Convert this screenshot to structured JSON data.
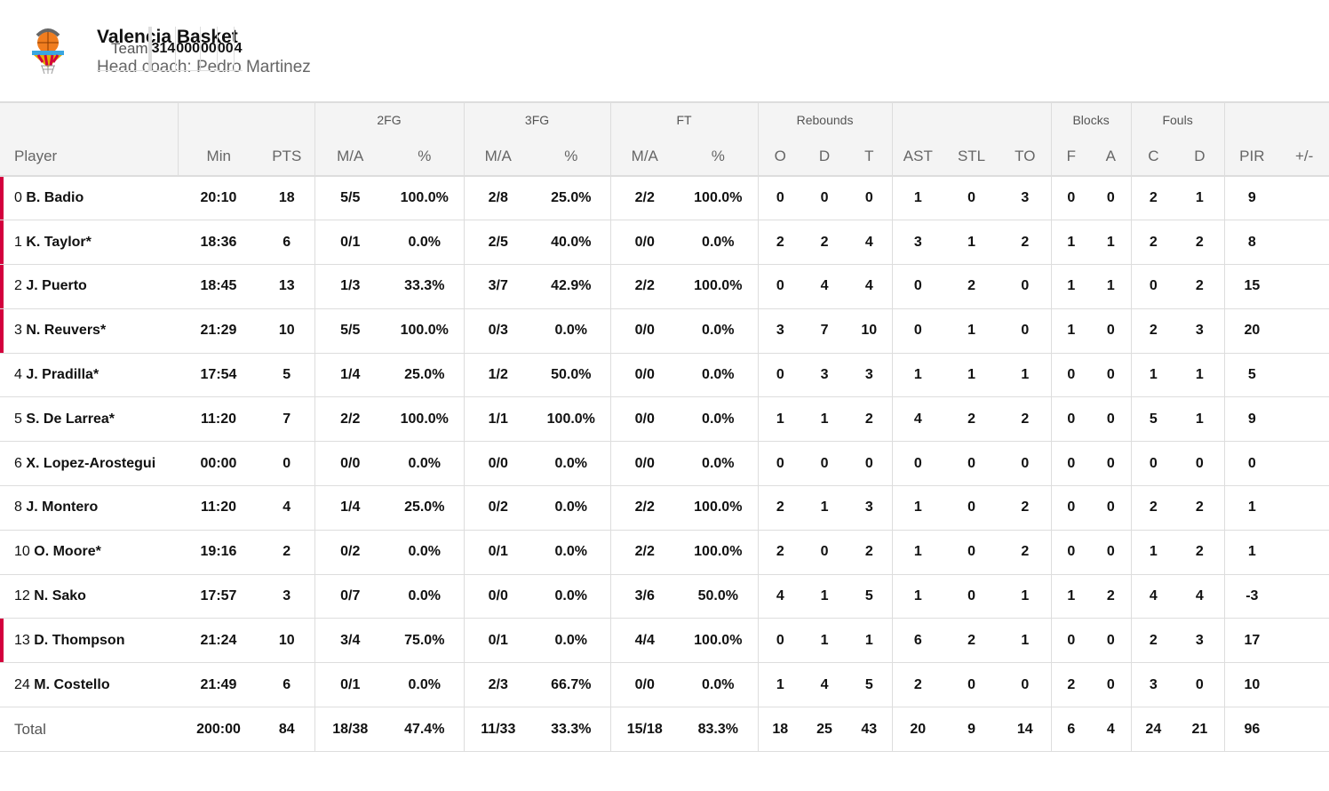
{
  "team": {
    "name": "Valencia Basket",
    "coach": "Head coach: Pedro Martinez",
    "logo_text": "VALENCIA BASKET"
  },
  "groups": {
    "fg2": "2FG",
    "fg3": "3FG",
    "ft": "FT",
    "reb": "Rebounds",
    "blk": "Blocks",
    "fouls": "Fouls"
  },
  "columns": [
    "Player",
    "Min",
    "PTS",
    "M/A",
    "%",
    "M/A",
    "%",
    "M/A",
    "%",
    "O",
    "D",
    "T",
    "AST",
    "STL",
    "TO",
    "F",
    "A",
    "C",
    "D",
    "PIR",
    "+/-"
  ],
  "players": [
    {
      "num": "0",
      "name": "B. Badio",
      "starter": true,
      "stats": [
        "20:10",
        "18",
        "5/5",
        "100.0%",
        "2/8",
        "25.0%",
        "2/2",
        "100.0%",
        "0",
        "0",
        "0",
        "1",
        "0",
        "3",
        "0",
        "0",
        "2",
        "1",
        "9",
        ""
      ]
    },
    {
      "num": "1",
      "name": "K. Taylor*",
      "starter": true,
      "stats": [
        "18:36",
        "6",
        "0/1",
        "0.0%",
        "2/5",
        "40.0%",
        "0/0",
        "0.0%",
        "2",
        "2",
        "4",
        "3",
        "1",
        "2",
        "1",
        "1",
        "2",
        "2",
        "8",
        ""
      ]
    },
    {
      "num": "2",
      "name": "J. Puerto",
      "starter": true,
      "stats": [
        "18:45",
        "13",
        "1/3",
        "33.3%",
        "3/7",
        "42.9%",
        "2/2",
        "100.0%",
        "0",
        "4",
        "4",
        "0",
        "2",
        "0",
        "1",
        "1",
        "0",
        "2",
        "15",
        ""
      ]
    },
    {
      "num": "3",
      "name": "N. Reuvers*",
      "starter": true,
      "stats": [
        "21:29",
        "10",
        "5/5",
        "100.0%",
        "0/3",
        "0.0%",
        "0/0",
        "0.0%",
        "3",
        "7",
        "10",
        "0",
        "1",
        "0",
        "1",
        "0",
        "2",
        "3",
        "20",
        ""
      ]
    },
    {
      "num": "4",
      "name": "J. Pradilla*",
      "starter": false,
      "stats": [
        "17:54",
        "5",
        "1/4",
        "25.0%",
        "1/2",
        "50.0%",
        "0/0",
        "0.0%",
        "0",
        "3",
        "3",
        "1",
        "1",
        "1",
        "0",
        "0",
        "1",
        "1",
        "5",
        ""
      ]
    },
    {
      "num": "5",
      "name": "S. De Larrea*",
      "starter": false,
      "stats": [
        "11:20",
        "7",
        "2/2",
        "100.0%",
        "1/1",
        "100.0%",
        "0/0",
        "0.0%",
        "1",
        "1",
        "2",
        "4",
        "2",
        "2",
        "0",
        "0",
        "5",
        "1",
        "9",
        ""
      ]
    },
    {
      "num": "6",
      "name": "X. Lopez-Arostegui",
      "starter": false,
      "stats": [
        "00:00",
        "0",
        "0/0",
        "0.0%",
        "0/0",
        "0.0%",
        "0/0",
        "0.0%",
        "0",
        "0",
        "0",
        "0",
        "0",
        "0",
        "0",
        "0",
        "0",
        "0",
        "0",
        ""
      ]
    },
    {
      "num": "8",
      "name": "J. Montero",
      "starter": false,
      "stats": [
        "11:20",
        "4",
        "1/4",
        "25.0%",
        "0/2",
        "0.0%",
        "2/2",
        "100.0%",
        "2",
        "1",
        "3",
        "1",
        "0",
        "2",
        "0",
        "0",
        "2",
        "2",
        "1",
        ""
      ]
    },
    {
      "num": "10",
      "name": "O. Moore*",
      "starter": false,
      "stats": [
        "19:16",
        "2",
        "0/2",
        "0.0%",
        "0/1",
        "0.0%",
        "2/2",
        "100.0%",
        "2",
        "0",
        "2",
        "1",
        "0",
        "2",
        "0",
        "0",
        "1",
        "2",
        "1",
        ""
      ]
    },
    {
      "num": "12",
      "name": "N. Sako",
      "starter": false,
      "stats": [
        "17:57",
        "3",
        "0/7",
        "0.0%",
        "0/0",
        "0.0%",
        "3/6",
        "50.0%",
        "4",
        "1",
        "5",
        "1",
        "0",
        "1",
        "1",
        "2",
        "4",
        "4",
        "-3",
        ""
      ]
    },
    {
      "num": "13",
      "name": "D. Thompson",
      "starter": true,
      "stats": [
        "21:24",
        "10",
        "3/4",
        "75.0%",
        "0/1",
        "0.0%",
        "4/4",
        "100.0%",
        "0",
        "1",
        "1",
        "6",
        "2",
        "1",
        "0",
        "0",
        "2",
        "3",
        "17",
        ""
      ]
    },
    {
      "num": "24",
      "name": "M. Costello",
      "starter": false,
      "stats": [
        "21:49",
        "6",
        "0/1",
        "0.0%",
        "2/3",
        "66.7%",
        "0/0",
        "0.0%",
        "1",
        "4",
        "5",
        "2",
        "0",
        "0",
        "2",
        "0",
        "3",
        "0",
        "10",
        ""
      ]
    }
  ],
  "team_row": {
    "label": "Team",
    "stats": [
      "",
      "",
      "",
      "",
      "",
      "",
      "",
      "",
      "3",
      "1",
      "4",
      "0",
      "0",
      "0",
      "0",
      "0",
      "0",
      "0",
      "4",
      ""
    ]
  },
  "total_row": {
    "label": "Total",
    "stats": [
      "200:00",
      "84",
      "18/38",
      "47.4%",
      "11/33",
      "33.3%",
      "15/18",
      "83.3%",
      "18",
      "25",
      "43",
      "20",
      "9",
      "14",
      "6",
      "4",
      "24",
      "21",
      "96",
      ""
    ]
  }
}
